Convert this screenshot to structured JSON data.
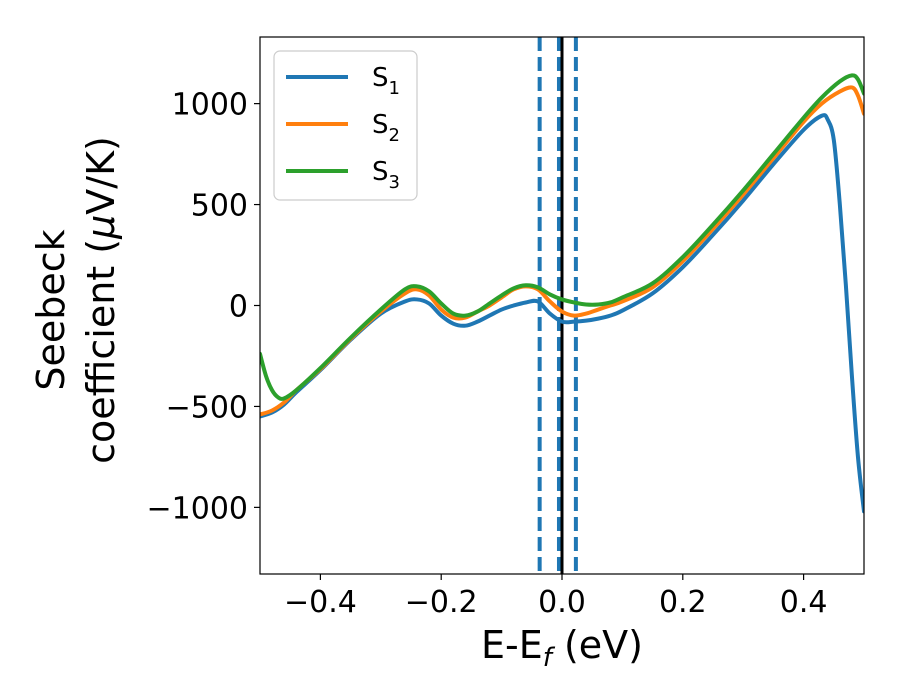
{
  "chart_data": {
    "type": "line",
    "xlabel": {
      "main": "E-E",
      "sub": "f",
      "unit": " (eV)"
    },
    "ylabel": {
      "line1": "Seebeck",
      "line2_prefix": "coefficient  (",
      "line2_mu": "μ",
      "line2_suffix": "V/K)"
    },
    "xlim": [
      -0.5,
      0.5
    ],
    "ylim": [
      -1330,
      1330
    ],
    "xticks": [
      -0.4,
      -0.2,
      0.0,
      0.2,
      0.4
    ],
    "xtick_labels": [
      "−0.4",
      "−0.2",
      "0.0",
      "0.2",
      "0.4"
    ],
    "yticks": [
      -1000,
      -500,
      0,
      500,
      1000
    ],
    "ytick_labels": [
      "−1000",
      "−500",
      "0",
      "500",
      "1000"
    ],
    "grid": false,
    "legend_position": "top-left",
    "vertical_lines": [
      {
        "x": -0.037,
        "style": "dashed",
        "color": "#1f77b4"
      },
      {
        "x": -0.005,
        "style": "dashed",
        "color": "#1f77b4"
      },
      {
        "x": 0.0,
        "style": "solid",
        "color": "#000000"
      },
      {
        "x": 0.023,
        "style": "dashed",
        "color": "#1f77b4"
      }
    ],
    "series": [
      {
        "name": "S",
        "sub": "1",
        "color": "#1f77b4",
        "x": [
          -0.5,
          -0.48,
          -0.46,
          -0.44,
          -0.4,
          -0.35,
          -0.3,
          -0.26,
          -0.24,
          -0.22,
          -0.2,
          -0.18,
          -0.16,
          -0.14,
          -0.12,
          -0.1,
          -0.08,
          -0.06,
          -0.04,
          -0.02,
          0.0,
          0.02,
          0.04,
          0.06,
          0.08,
          0.1,
          0.15,
          0.2,
          0.25,
          0.3,
          0.35,
          0.4,
          0.43,
          0.44,
          0.45,
          0.46,
          0.47,
          0.48,
          0.49,
          0.5
        ],
        "y": [
          -550,
          -530,
          -490,
          -430,
          -320,
          -170,
          -40,
          20,
          30,
          10,
          -50,
          -90,
          -100,
          -80,
          -50,
          -20,
          0,
          15,
          20,
          -40,
          -80,
          -80,
          -75,
          -65,
          -50,
          -25,
          60,
          190,
          350,
          520,
          700,
          870,
          940,
          920,
          820,
          500,
          100,
          -350,
          -750,
          -1020
        ]
      },
      {
        "name": "S",
        "sub": "2",
        "color": "#ff7f0e",
        "x": [
          -0.5,
          -0.48,
          -0.46,
          -0.44,
          -0.4,
          -0.35,
          -0.3,
          -0.26,
          -0.24,
          -0.22,
          -0.2,
          -0.18,
          -0.16,
          -0.14,
          -0.12,
          -0.1,
          -0.08,
          -0.06,
          -0.04,
          -0.02,
          0.0,
          0.02,
          0.04,
          0.06,
          0.08,
          0.1,
          0.15,
          0.2,
          0.25,
          0.3,
          0.35,
          0.4,
          0.43,
          0.46,
          0.48,
          0.49,
          0.5
        ],
        "y": [
          -540,
          -520,
          -480,
          -420,
          -315,
          -165,
          -30,
          60,
          80,
          50,
          -20,
          -60,
          -60,
          -30,
          0,
          40,
          80,
          95,
          80,
          20,
          -30,
          -50,
          -40,
          -20,
          0,
          20,
          90,
          220,
          380,
          550,
          730,
          910,
          1000,
          1060,
          1080,
          1040,
          950
        ]
      },
      {
        "name": "S",
        "sub": "3",
        "color": "#2ca02c",
        "x": [
          -0.5,
          -0.49,
          -0.48,
          -0.47,
          -0.46,
          -0.44,
          -0.4,
          -0.35,
          -0.3,
          -0.26,
          -0.24,
          -0.22,
          -0.2,
          -0.18,
          -0.16,
          -0.14,
          -0.12,
          -0.1,
          -0.08,
          -0.06,
          -0.04,
          -0.02,
          0.0,
          0.02,
          0.04,
          0.06,
          0.08,
          0.1,
          0.15,
          0.2,
          0.25,
          0.3,
          0.35,
          0.4,
          0.43,
          0.46,
          0.48,
          0.49,
          0.5
        ],
        "y": [
          -240,
          -350,
          -420,
          -455,
          -460,
          -420,
          -310,
          -160,
          -20,
          80,
          95,
          70,
          10,
          -40,
          -50,
          -30,
          10,
          50,
          85,
          100,
          90,
          55,
          30,
          15,
          5,
          5,
          15,
          40,
          110,
          240,
          400,
          570,
          750,
          930,
          1030,
          1110,
          1140,
          1120,
          1050
        ]
      }
    ]
  }
}
